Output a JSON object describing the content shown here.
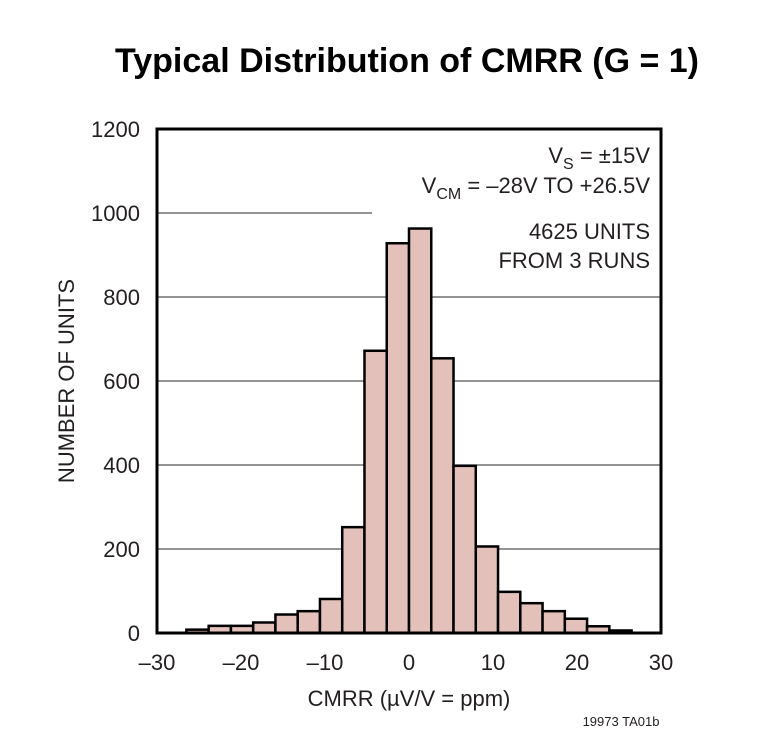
{
  "chart_data": {
    "type": "bar",
    "title": "Typical Distribution of CMRR (G = 1)",
    "xlabel": "CMRR (µV/V = ppm)",
    "ylabel": "NUMBER OF UNITS",
    "xlim": [
      -30,
      30
    ],
    "ylim": [
      0,
      1200
    ],
    "x_ticks": [
      -30,
      -20,
      -10,
      0,
      10,
      20,
      30
    ],
    "x_tick_labels": [
      "–30",
      "–20",
      "–10",
      "0",
      "10",
      "20",
      "30"
    ],
    "y_ticks": [
      0,
      200,
      400,
      600,
      800,
      1000,
      1200
    ],
    "y_tick_labels": [
      "0",
      "200",
      "400",
      "600",
      "800",
      "1000",
      "1200"
    ],
    "grid": "horizontal",
    "bar_color": "#e3c0b9",
    "bin_edges": [
      -26.5,
      -23.85,
      -21.2,
      -18.55,
      -15.9,
      -13.25,
      -10.6,
      -7.95,
      -5.3,
      -2.65,
      0,
      2.65,
      5.3,
      7.95,
      10.6,
      13.25,
      15.9,
      18.55,
      21.2,
      23.85,
      26.5
    ],
    "values": [
      8,
      17,
      17,
      25,
      44,
      52,
      81,
      252,
      672,
      928,
      963,
      654,
      398,
      206,
      98,
      71,
      52,
      34,
      16,
      6
    ],
    "annotations": {
      "vs": {
        "main": "V",
        "sub": "S",
        "rest": " = ±15V"
      },
      "vcm": {
        "main": "V",
        "sub": "CM",
        "rest": " = –28V  TO +26.5V"
      },
      "units": "4625 UNITS",
      "runs": "FROM 3 RUNS"
    }
  },
  "footer": {
    "code": "19973 TA01b"
  }
}
